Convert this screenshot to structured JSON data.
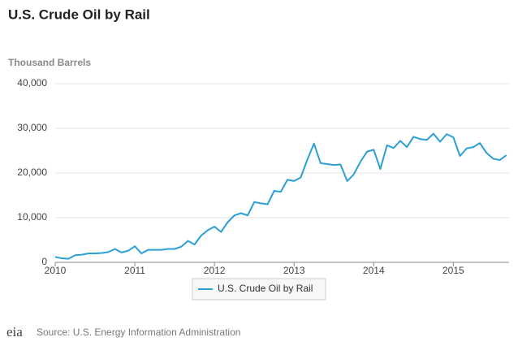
{
  "chart_data": {
    "type": "line",
    "title": "U.S. Crude Oil by Rail",
    "subtitle": "Thousand Barrels",
    "source": "Source: U.S. Energy Information Administration",
    "logo": "eia",
    "x": [
      2010,
      2010.083,
      2010.167,
      2010.25,
      2010.333,
      2010.417,
      2010.5,
      2010.583,
      2010.667,
      2010.75,
      2010.833,
      2010.917,
      2011,
      2011.083,
      2011.167,
      2011.25,
      2011.333,
      2011.417,
      2011.5,
      2011.583,
      2011.667,
      2011.75,
      2011.833,
      2011.917,
      2012,
      2012.083,
      2012.167,
      2012.25,
      2012.333,
      2012.417,
      2012.5,
      2012.583,
      2012.667,
      2012.75,
      2012.833,
      2012.917,
      2013,
      2013.083,
      2013.167,
      2013.25,
      2013.333,
      2013.417,
      2013.5,
      2013.583,
      2013.667,
      2013.75,
      2013.833,
      2013.917,
      2014,
      2014.083,
      2014.167,
      2014.25,
      2014.333,
      2014.417,
      2014.5,
      2014.583,
      2014.667,
      2014.75,
      2014.833,
      2014.917,
      2015,
      2015.083,
      2015.167,
      2015.25,
      2015.333,
      2015.417,
      2015.5,
      2015.583,
      2015.667
    ],
    "series": [
      {
        "name": "U.S. Crude Oil by Rail",
        "color": "#2b9fd6",
        "values": [
          1200,
          900,
          800,
          1600,
          1700,
          2000,
          2000,
          2100,
          2300,
          3000,
          2200,
          2600,
          3600,
          2000,
          2800,
          2800,
          2800,
          3000,
          3000,
          3500,
          4800,
          4000,
          6000,
          7200,
          8000,
          6800,
          9000,
          10500,
          11000,
          10500,
          13500,
          13200,
          13000,
          16000,
          15800,
          18500,
          18200,
          19000,
          23000,
          26600,
          22200,
          22000,
          21800,
          21900,
          18200,
          19700,
          22500,
          24800,
          25200,
          20900,
          26200,
          25600,
          27200,
          25800,
          28100,
          27600,
          27400,
          28800,
          27000,
          28700,
          28000,
          23800,
          25500,
          25800,
          26700,
          24500,
          23200,
          22900,
          24000
        ]
      }
    ],
    "xlim": [
      2010,
      2015.7
    ],
    "xticks": [
      2010,
      2011,
      2012,
      2013,
      2014,
      2015
    ],
    "ylim": [
      0,
      40000
    ],
    "yticks": [
      0,
      {
        "value": 10000,
        "label": "10,000"
      },
      {
        "value": 20000,
        "label": "20,000"
      },
      {
        "value": 30000,
        "label": "30,000"
      },
      {
        "value": 40000,
        "label": "40,000"
      }
    ],
    "grid": true
  }
}
